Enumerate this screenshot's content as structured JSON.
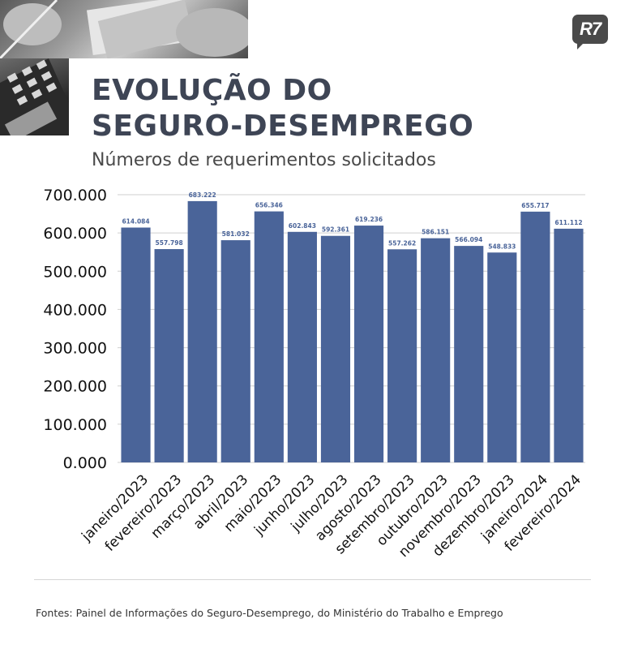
{
  "header": {
    "title_line1": "EVOLUÇÃO DO",
    "title_line2": "SEGURO-DESEMPREGO",
    "subtitle": "Números de requerimentos solicitados",
    "logo_text": "R7"
  },
  "footer": {
    "source": "Fontes:  Painel de Informações do Seguro-Desemprego, do Ministério do Trabalho e Emprego"
  },
  "colors": {
    "bar": "#4a6499",
    "bar_label": "#4a6499",
    "grid": "#cfcfcf",
    "title": "#3e4555"
  },
  "chart_data": {
    "type": "bar",
    "categories": [
      "janeiro/2023",
      "fevereiro/2023",
      "março/2023",
      "abril/2023",
      "maio/2023",
      "junho/2023",
      "julho/2023",
      "agosto/2023",
      "setembro/2023",
      "outubro/2023",
      "novembro/2023",
      "dezembro/2023",
      "janeiro/2024",
      "fevereiro/2024"
    ],
    "values": [
      614084,
      557798,
      683222,
      581032,
      656346,
      602843,
      592361,
      619236,
      557262,
      586151,
      566094,
      548833,
      655717,
      611112
    ],
    "value_labels": [
      "614.084",
      "557.798",
      "683.222",
      "581.032",
      "656.346",
      "602.843",
      "592.361",
      "619.236",
      "557.262",
      "586.151",
      "566.094",
      "548.833",
      "655.717",
      "611.112"
    ],
    "yticks": [
      0,
      100000,
      200000,
      300000,
      400000,
      500000,
      600000,
      700000
    ],
    "ytick_labels": [
      "0.000",
      "100.000",
      "200.000",
      "300.000",
      "400.000",
      "500.000",
      "600.000",
      "700.000"
    ],
    "ylim": [
      0,
      700000
    ],
    "grid": true,
    "legend": "none"
  }
}
